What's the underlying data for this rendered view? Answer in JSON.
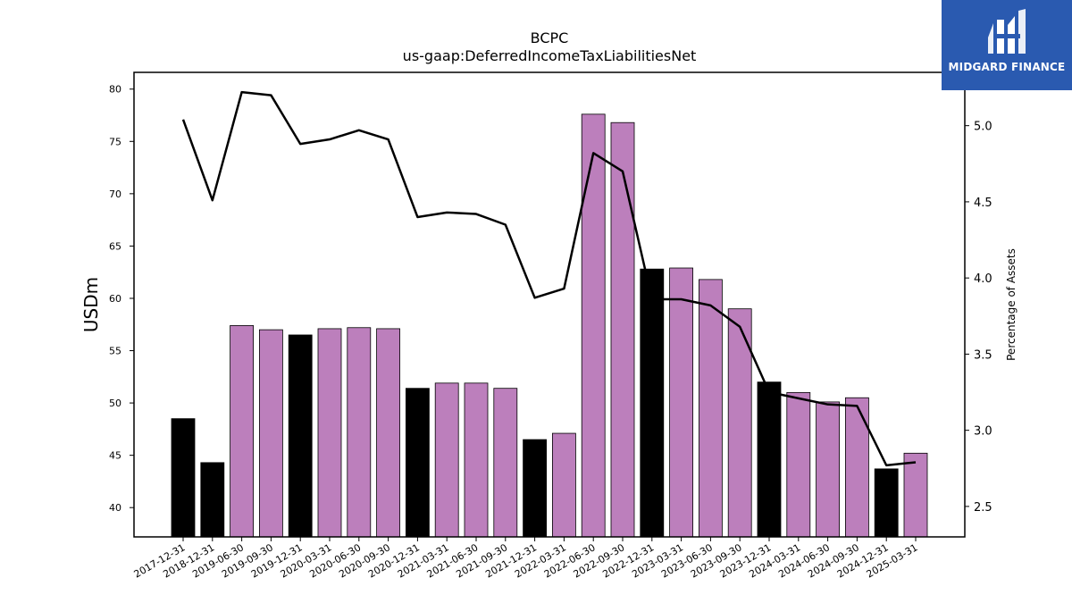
{
  "chart_data": {
    "type": "bar",
    "title": "BCPC",
    "subtitle": "us-gaap:DeferredIncomeTaxLiabilitiesNet",
    "ylabel": "USDm",
    "ylabel_right": "Percentage of Assets",
    "ylim": [
      37.2,
      81.6
    ],
    "ylim_right": [
      2.3,
      5.35
    ],
    "yticks": [
      40,
      45,
      50,
      55,
      60,
      65,
      70,
      75,
      80
    ],
    "yticks_right": [
      2.5,
      3.0,
      3.5,
      4.0,
      4.5,
      5.0
    ],
    "categories": [
      "2017-12-31",
      "2018-12-31",
      "2019-06-30",
      "2019-09-30",
      "2019-12-31",
      "2020-03-31",
      "2020-06-30",
      "2020-09-30",
      "2020-12-31",
      "2021-03-31",
      "2021-06-30",
      "2021-09-30",
      "2021-12-31",
      "2022-03-31",
      "2022-06-30",
      "2022-09-30",
      "2022-12-31",
      "2023-03-31",
      "2023-06-30",
      "2023-09-30",
      "2023-12-31",
      "2024-03-31",
      "2024-06-30",
      "2024-09-30",
      "2024-12-31",
      "2025-03-31"
    ],
    "series": [
      {
        "kind": "bar",
        "values": [
          48.5,
          44.3,
          57.4,
          57.0,
          56.5,
          57.1,
          57.2,
          57.1,
          51.4,
          51.9,
          51.9,
          51.4,
          46.5,
          47.1,
          77.6,
          76.8,
          62.8,
          62.9,
          61.8,
          59.0,
          52.0,
          51.0,
          50.1,
          50.5,
          43.7,
          45.2
        ],
        "colors": [
          "#000000",
          "#000000",
          "#bc7fbc",
          "#bc7fbc",
          "#000000",
          "#bc7fbc",
          "#bc7fbc",
          "#bc7fbc",
          "#000000",
          "#bc7fbc",
          "#bc7fbc",
          "#bc7fbc",
          "#000000",
          "#bc7fbc",
          "#bc7fbc",
          "#bc7fbc",
          "#000000",
          "#bc7fbc",
          "#bc7fbc",
          "#bc7fbc",
          "#000000",
          "#bc7fbc",
          "#bc7fbc",
          "#bc7fbc",
          "#000000",
          "#bc7fbc"
        ]
      },
      {
        "kind": "line",
        "axis": "right",
        "color": "#000000",
        "values": [
          5.04,
          4.51,
          5.22,
          5.2,
          4.88,
          4.91,
          4.97,
          4.91,
          4.4,
          4.43,
          4.42,
          4.35,
          3.87,
          3.93,
          4.82,
          4.7,
          3.86,
          3.86,
          3.82,
          3.68,
          3.25,
          3.21,
          3.17,
          3.16,
          2.77,
          2.79
        ]
      }
    ],
    "grid": false,
    "legend": "none"
  },
  "logo": {
    "text": "MIDGARD FINANCE",
    "background": "#2a5ab0"
  }
}
